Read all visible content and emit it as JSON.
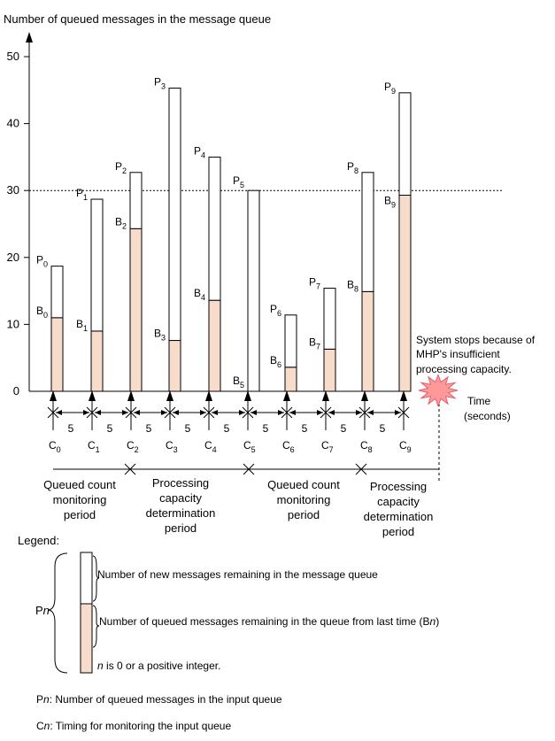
{
  "y_axis_label": "Number of queued messages in the message queue",
  "y_ticks": [
    0,
    10,
    20,
    30,
    40,
    50
  ],
  "threshold": 30,
  "bars": [
    {
      "p_label": "P",
      "p_sub": "0",
      "b_label": "B",
      "b_sub": "0",
      "total": 18.7,
      "remaining": 11
    },
    {
      "p_label": "P",
      "p_sub": "1",
      "b_label": "B",
      "b_sub": "1",
      "total": 28.7,
      "remaining": 9
    },
    {
      "p_label": "P",
      "p_sub": "2",
      "b_label": "B",
      "b_sub": "2",
      "total": 32.7,
      "remaining": 24.3
    },
    {
      "p_label": "P",
      "p_sub": "3",
      "b_label": "B",
      "b_sub": "3",
      "total": 45.3,
      "remaining": 7.6
    },
    {
      "p_label": "P",
      "p_sub": "4",
      "b_label": "B",
      "b_sub": "4",
      "total": 35,
      "remaining": 13.6
    },
    {
      "p_label": "P",
      "p_sub": "5",
      "b_label": "B",
      "b_sub": "5",
      "total": 30,
      "remaining": 0
    },
    {
      "p_label": "P",
      "p_sub": "6",
      "b_label": "B",
      "b_sub": "6",
      "total": 11.4,
      "remaining": 3.6
    },
    {
      "p_label": "P",
      "p_sub": "7",
      "b_label": "B",
      "b_sub": "7",
      "total": 15.4,
      "remaining": 6.3
    },
    {
      "p_label": "P",
      "p_sub": "8",
      "b_label": "B",
      "b_sub": "8",
      "total": 32.7,
      "remaining": 14.9
    },
    {
      "p_label": "P",
      "p_sub": "9",
      "b_label": "B",
      "b_sub": "9",
      "total": 44.6,
      "remaining": 29.3
    }
  ],
  "c_labels": [
    {
      "main": "C",
      "sub": "0"
    },
    {
      "main": "C",
      "sub": "1"
    },
    {
      "main": "C",
      "sub": "2"
    },
    {
      "main": "C",
      "sub": "3"
    },
    {
      "main": "C",
      "sub": "4"
    },
    {
      "main": "C",
      "sub": "5"
    },
    {
      "main": "C",
      "sub": "6"
    },
    {
      "main": "C",
      "sub": "7"
    },
    {
      "main": "C",
      "sub": "8"
    },
    {
      "main": "C",
      "sub": "9"
    }
  ],
  "interval_label": "5",
  "time_label": [
    "Time",
    "(seconds)"
  ],
  "system_stops": [
    "System stops because of",
    "MHP's insufficient",
    "processing capacity."
  ],
  "periods": [
    [
      "Queued count",
      "monitoring",
      "period"
    ],
    [
      "Processing",
      "capacity",
      "determination",
      "period"
    ],
    [
      "Queued count",
      "monitoring",
      "period"
    ],
    [
      "Processing",
      "capacity",
      "determination",
      "period"
    ]
  ],
  "legend": {
    "title": "Legend:",
    "pn_main": "P",
    "pn_sub": "n",
    "new_msgs": "Number of new messages remaining in the message queue",
    "queued_prefix": "Number of queued messages remaining in the queue from last time (B",
    "queued_n": "n",
    "queued_suffix": ")",
    "n_italic": "n",
    "n_rest": " is 0 or a positive integer.",
    "pn_def_main": "P",
    "pn_def_n": "n",
    "pn_def_rest": ": Number of queued messages in the input queue",
    "cn_def_main": "C",
    "cn_def_n": "n",
    "cn_def_rest": ": Timing for monitoring the input queue"
  },
  "colors": {
    "fill": "#f7dccb",
    "burst": "#ff9999",
    "burst_stroke": "#e06070"
  }
}
